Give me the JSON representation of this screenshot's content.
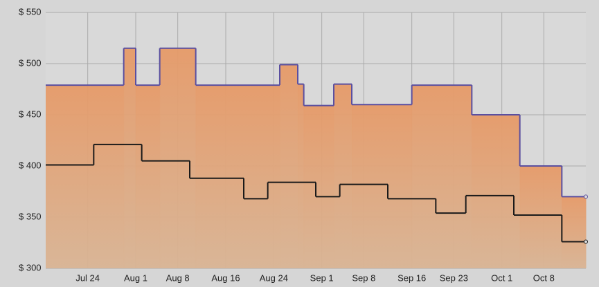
{
  "chart_data": {
    "type": "step",
    "xlim": [
      "Jul 17",
      "Oct 15"
    ],
    "xticks": [
      "Jul 24",
      "Aug 1",
      "Aug 8",
      "Aug 16",
      "Aug 24",
      "Sep 1",
      "Sep 8",
      "Sep 16",
      "Sep 23",
      "Oct 1",
      "Oct 8"
    ],
    "ylim": [
      300,
      550
    ],
    "yticks": [
      {
        "value": 300,
        "label": "$ 300"
      },
      {
        "value": 350,
        "label": "$ 350"
      },
      {
        "value": 400,
        "label": "$ 400"
      },
      {
        "value": 450,
        "label": "$ 450"
      },
      {
        "value": 500,
        "label": "$ 500"
      },
      {
        "value": 550,
        "label": "$ 550"
      }
    ],
    "grid": true,
    "series": [
      {
        "color": "#5a4fa0",
        "fill": true,
        "x": [
          "Jul 17",
          "Jul 30",
          "Aug 1",
          "Aug 5",
          "Aug 11",
          "Aug 25",
          "Aug 28",
          "Aug 29",
          "Sep 3",
          "Sep 6",
          "Sep 16",
          "Sep 26",
          "Oct 4",
          "Oct 11",
          "Oct 15"
        ],
        "values": [
          479,
          515,
          479,
          515,
          479,
          499,
          480,
          459,
          480,
          460,
          479,
          450,
          400,
          370,
          370
        ]
      },
      {
        "color": "#1a1a1a",
        "fill": false,
        "x": [
          "Jul 17",
          "Jul 25",
          "Aug 2",
          "Aug 10",
          "Aug 19",
          "Aug 23",
          "Aug 31",
          "Sep 4",
          "Sep 12",
          "Sep 20",
          "Sep 25",
          "Oct 3",
          "Oct 11",
          "Oct 15"
        ],
        "values": [
          401,
          421,
          405,
          388,
          368,
          384,
          370,
          382,
          368,
          354,
          371,
          352,
          326,
          326
        ]
      }
    ]
  }
}
